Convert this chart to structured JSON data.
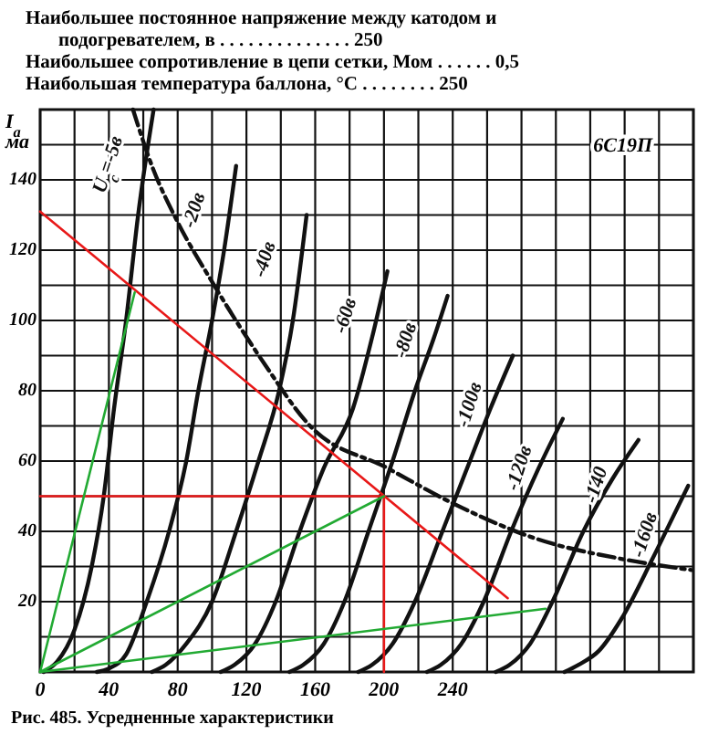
{
  "chart_data": {
    "type": "line",
    "ylabel": "I$_{а}$ ма",
    "xlim": [
      0,
      380
    ],
    "ylim": [
      0,
      160
    ],
    "xticks": [
      0,
      {
        "value": 20,
        "label": null
      },
      40,
      {
        "value": 60,
        "label": null
      },
      80,
      {
        "value": 100,
        "label": null
      },
      120,
      {
        "value": 140,
        "label": null
      },
      160,
      {
        "value": 180,
        "label": null
      },
      200,
      {
        "value": 220,
        "label": null
      },
      240,
      {
        "value": 260,
        "label": null
      },
      {
        "value": 280,
        "label": null
      },
      {
        "value": 300,
        "label": null
      },
      {
        "value": 320,
        "label": null
      },
      {
        "value": 340,
        "label": null
      },
      {
        "value": 360,
        "label": null
      },
      {
        "value": 380,
        "label": null
      }
    ],
    "yticks": [
      {
        "value": 0,
        "label": null
      },
      {
        "value": 10,
        "label": null
      },
      20,
      {
        "value": 30,
        "label": null
      },
      40,
      {
        "value": 50,
        "label": null
      },
      60,
      {
        "value": 70,
        "label": null
      },
      80,
      {
        "value": 90,
        "label": null
      },
      100,
      {
        "value": 110,
        "label": null
      },
      120,
      {
        "value": 130,
        "label": null
      },
      140,
      {
        "value": 150,
        "label": null
      },
      {
        "value": 160,
        "label": null
      }
    ],
    "grid": true,
    "series": [
      {
        "name": "U$_{c}$=-5в",
        "color": "#111111",
        "x": [
          2,
          10,
          20,
          30,
          37,
          43,
          50,
          57,
          66
        ],
        "values": [
          0,
          3,
          12,
          30,
          50,
          75,
          100,
          130,
          160
        ]
      },
      {
        "name": "-20в",
        "color": "#111111",
        "x": [
          33,
          40,
          50,
          62,
          75,
          85,
          92,
          100,
          107,
          114
        ],
        "values": [
          0,
          1,
          5,
          20,
          40,
          60,
          80,
          100,
          120,
          144
        ]
      },
      {
        "name": "-40в",
        "color": "#111111",
        "x": [
          65,
          73,
          85,
          100,
          114,
          127,
          139,
          147,
          155
        ],
        "values": [
          0,
          2,
          8,
          20,
          40,
          60,
          80,
          100,
          130
        ]
      },
      {
        "name": "-60в",
        "color": "#111111",
        "x": [
          105,
          113,
          125,
          137,
          151,
          165,
          182,
          193,
          202
        ],
        "values": [
          0,
          2,
          8,
          20,
          40,
          58,
          75,
          95,
          114
        ]
      },
      {
        "name": "-80в",
        "color": "#111111",
        "x": [
          145,
          153,
          165,
          177,
          191,
          205,
          218,
          229,
          237
        ],
        "values": [
          0,
          2,
          8,
          20,
          40,
          60,
          80,
          95,
          107
        ]
      },
      {
        "name": "-100в",
        "color": "#111111",
        "x": [
          185,
          193,
          205,
          218,
          234,
          250,
          262,
          275
        ],
        "values": [
          0,
          2,
          8,
          20,
          40,
          60,
          75,
          90
        ]
      },
      {
        "name": "-120в",
        "color": "#111111",
        "x": [
          225,
          233,
          245,
          258,
          274,
          290,
          304
        ],
        "values": [
          0,
          2,
          8,
          20,
          40,
          58,
          72
        ]
      },
      {
        "name": "-140",
        "color": "#111111",
        "x": [
          265,
          273,
          285,
          298,
          316,
          333,
          348
        ],
        "values": [
          0,
          2,
          8,
          20,
          40,
          55,
          66
        ]
      },
      {
        "name": "-160в",
        "color": "#111111",
        "x": [
          305,
          313,
          325,
          338,
          356,
          368,
          377
        ],
        "values": [
          0,
          2,
          6,
          15,
          32,
          44,
          53
        ]
      },
      {
        "color": "#111111",
        "line_style": "dashed",
        "x": [
          54,
          65,
          80,
          100,
          130,
          157,
          202,
          240,
          288,
          340,
          379
        ],
        "values": [
          160,
          144,
          128,
          111,
          88,
          70,
          58,
          48,
          38,
          32,
          29
        ]
      },
      {
        "color": "#e81818",
        "x": [
          0,
          272
        ],
        "values": [
          131,
          21
        ]
      },
      {
        "color": "#e81818",
        "x": [
          0,
          200
        ],
        "values": [
          50,
          50
        ]
      },
      {
        "color": "#e81818",
        "x": [
          200,
          200
        ],
        "values": [
          0,
          50
        ]
      },
      {
        "color": "#22aa33",
        "x": [
          0,
          55
        ],
        "values": [
          0,
          108
        ]
      },
      {
        "color": "#22aa33",
        "x": [
          0,
          200
        ],
        "values": [
          0,
          50
        ]
      },
      {
        "color": "#22aa33",
        "x": [
          0,
          294
        ],
        "values": [
          0,
          18
        ]
      }
    ],
    "annotations": [
      "Наибольшее постоянное напряжение между катодом и",
      "подогревателем, в . . . . . . . . . . . . . . 250",
      "Наибольшее сопротивление в цепи сетки, Мом . . . . . . 0,5",
      "Наибольшая температура баллона, °С . . . . . . . . 250",
      "6С19П",
      "Рис. 485. Усредненные характеристики"
    ]
  }
}
